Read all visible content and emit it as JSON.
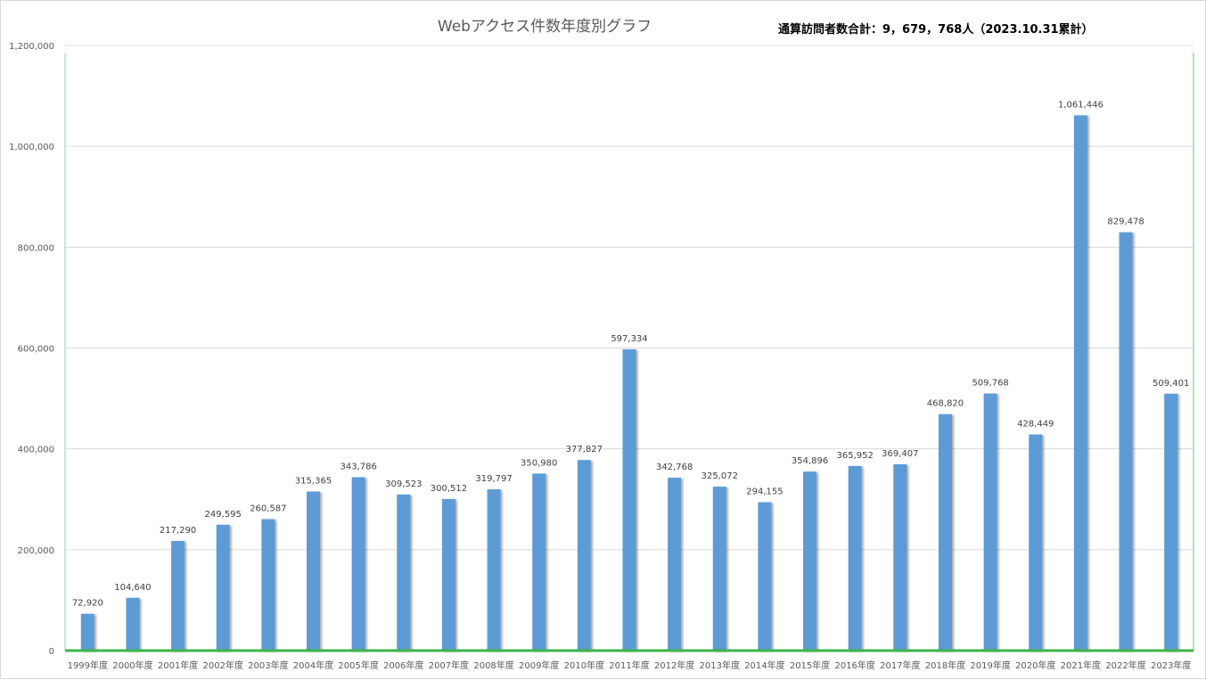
{
  "chart_data": {
    "type": "bar",
    "title": "Webアクセス件数年度別グラフ",
    "subtitle": "通算訪問者数合計：9，679，768人（2023.10.31累計）",
    "xlabel": "",
    "ylabel": "",
    "ylim": [
      0,
      1200000
    ],
    "yticks": [
      0,
      200000,
      400000,
      600000,
      800000,
      1000000,
      1200000
    ],
    "ytick_labels": [
      "0",
      "200,000",
      "400,000",
      "600,000",
      "800,000",
      "1,000,000",
      "1,200,000"
    ],
    "grid": true,
    "legend": "none",
    "bar_color": "#5b9bd5",
    "baseline_color": "#3cb54a",
    "categories": [
      "1999年度",
      "2000年度",
      "2001年度",
      "2002年度",
      "2003年度",
      "2004年度",
      "2005年度",
      "2006年度",
      "2007年度",
      "2008年度",
      "2009年度",
      "2010年度",
      "2011年度",
      "2012年度",
      "2013年度",
      "2014年度",
      "2015年度",
      "2016年度",
      "2017年度",
      "2018年度",
      "2019年度",
      "2020年度",
      "2021年度",
      "2022年度",
      "2023年度"
    ],
    "values": [
      72920,
      104640,
      217290,
      249595,
      260587,
      315365,
      343786,
      309523,
      300512,
      319797,
      350980,
      377827,
      597334,
      342768,
      325072,
      294155,
      354896,
      365952,
      369407,
      468820,
      509768,
      428449,
      1061446,
      829478,
      509401
    ],
    "value_labels": [
      "72,920",
      "104,640",
      "217,290",
      "249,595",
      "260,587",
      "315,365",
      "343,786",
      "309,523",
      "300,512",
      "319,797",
      "350,980",
      "377,827",
      "597,334",
      "342,768",
      "325,072",
      "294,155",
      "354,896",
      "365,952",
      "369,407",
      "468,820",
      "509,768",
      "428,449",
      "1,061,446",
      "829,478",
      "509,401"
    ]
  }
}
